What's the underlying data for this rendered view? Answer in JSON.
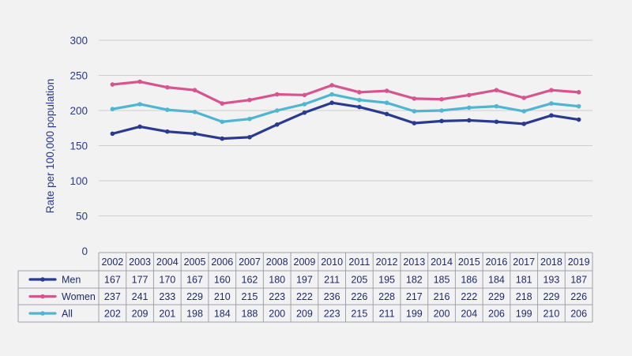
{
  "chart_data": {
    "type": "line",
    "ylabel": "Rate per 100,000 population",
    "xlabel": "",
    "title": "",
    "ylim": [
      0,
      300
    ],
    "yticks": [
      "0",
      "50",
      "100",
      "150",
      "200",
      "250",
      "300"
    ],
    "grid": true,
    "legend_placement": "table-left",
    "categories": [
      "2002",
      "2003",
      "2004",
      "2005",
      "2006",
      "2007",
      "2008",
      "2009",
      "2010",
      "2011",
      "2012",
      "2013",
      "2014",
      "2015",
      "2016",
      "2017",
      "2018",
      "2019"
    ],
    "series": [
      {
        "name": "Men",
        "color": "#2a3a8f",
        "values": [
          167,
          177,
          170,
          167,
          160,
          162,
          180,
          197,
          211,
          205,
          195,
          182,
          185,
          186,
          184,
          181,
          193,
          187
        ]
      },
      {
        "name": "Women",
        "color": "#d6558e",
        "values": [
          237,
          241,
          233,
          229,
          210,
          215,
          223,
          222,
          236,
          226,
          228,
          217,
          216,
          222,
          229,
          218,
          229,
          226
        ]
      },
      {
        "name": "All",
        "color": "#4fb5d1",
        "values": [
          202,
          209,
          201,
          198,
          184,
          188,
          200,
          209,
          223,
          215,
          211,
          199,
          200,
          204,
          206,
          199,
          210,
          206
        ]
      }
    ]
  }
}
